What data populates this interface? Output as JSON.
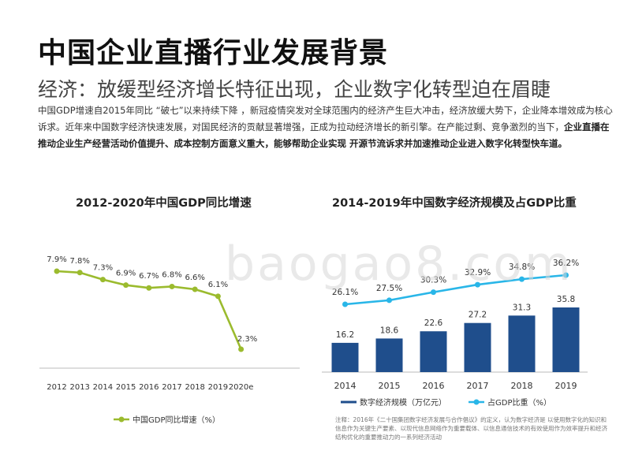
{
  "page": {
    "title": "中国企业直播行业发展背景",
    "subtitle": "经济：放缓型经济增长特征出现，企业数字化转型迫在眉睫",
    "intro_normal": "中国GDP增速自2015年同比 “破七”以来持续下降 ，新冠疫情突发对全球范围内的经济产生巨大冲击，经济放缓大势下，企业降本增效成为核心诉求。近年来中国数字经济快速发展，对国民经济的贡献显著增强，正成为拉动经济增长的新引擎。在产能过剩、竞争激烈的当下，",
    "intro_bold": "企业直播在推动企业生产经营活动价值提升、成本控制方面意义重大，能够帮助企业实现 开源节流诉求并加速推动企业进入数字化转型快车道。",
    "watermark": "baogao8.com",
    "note": "注释：2016年《二十国集团数字经济发展与合作倡议》的定义，认为数字经济是 以使用数字化的知识和信息作为关键生产要素、以现代信息网络作为重要载体、以信息通信技术的有效使用作为效率提升和经济结构优化的重要推动力的一系列经济活动"
  },
  "chart_data": [
    {
      "type": "line",
      "title": "2012-2020年中国GDP同比增速",
      "categories": [
        "2012",
        "2013",
        "2014",
        "2015",
        "2016",
        "2017",
        "2018",
        "2019",
        "2020e"
      ],
      "series": [
        {
          "name": "中国GDP同比增速（%）",
          "values": [
            7.9,
            7.8,
            7.3,
            6.9,
            6.7,
            6.8,
            6.6,
            6.1,
            2.3
          ],
          "labels": [
            "7.9%",
            "7.8%",
            "7.3%",
            "6.9%",
            "6.7%",
            "6.8%",
            "6.6%",
            "6.1%",
            "2.3%"
          ],
          "color": "#9bbb2e"
        }
      ],
      "ylim": [
        0,
        10
      ],
      "grid": false,
      "legend": "bottom"
    },
    {
      "type": "bar",
      "title": "2014-2019年中国数字经济规模及占GDP比重",
      "categories": [
        "2014",
        "2015",
        "2016",
        "2017",
        "2018",
        "2019"
      ],
      "series": [
        {
          "name": "数字经济规模（万亿元）",
          "type": "bar",
          "values": [
            16.2,
            18.6,
            22.6,
            27.2,
            31.3,
            35.8
          ],
          "labels": [
            "16.2",
            "18.6",
            "22.6",
            "27.2",
            "31.3",
            "35.8"
          ],
          "color": "#1f4e8c"
        },
        {
          "name": "占GDP比重（%）",
          "type": "line",
          "values": [
            26.1,
            27.5,
            30.3,
            32.9,
            34.8,
            36.2
          ],
          "labels": [
            "26.1%",
            "27.5%",
            "30.3%",
            "32.9%",
            "34.8%",
            "36.2%"
          ],
          "color": "#29b6e8"
        }
      ],
      "ylim_bar": [
        0,
        60
      ],
      "ylim_line": [
        0,
        40
      ],
      "grid": false,
      "legend": "bottom"
    }
  ]
}
